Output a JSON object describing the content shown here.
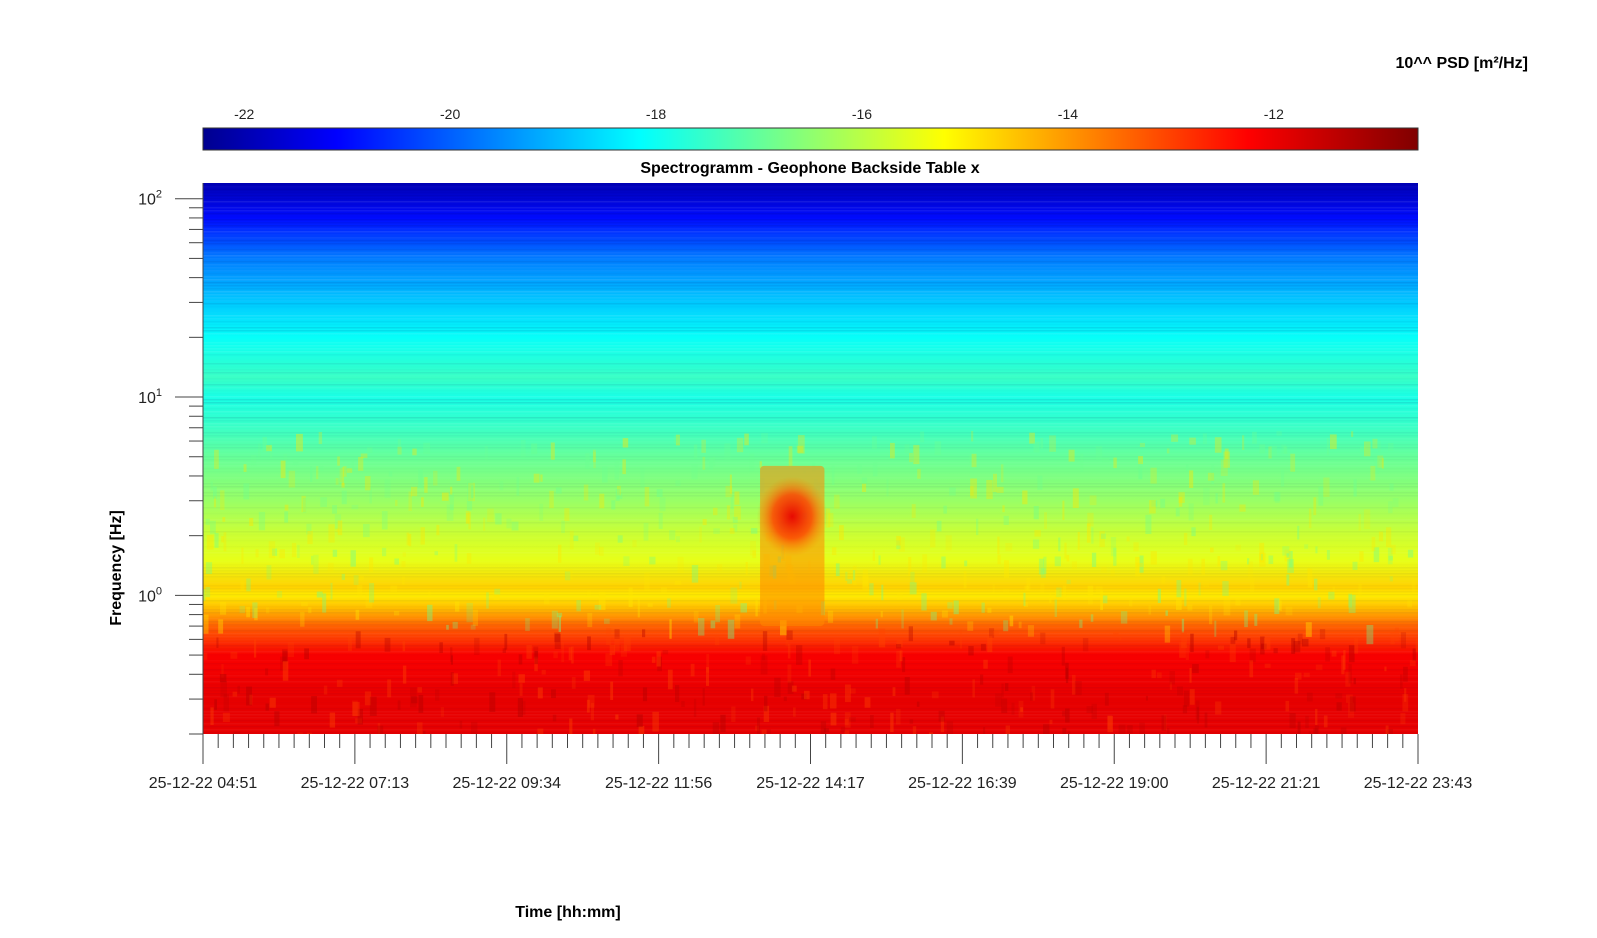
{
  "chart_data": {
    "type": "heatmap",
    "title": "Spectrogramm - Geophone Backside Table x",
    "xlabel": "Time [hh:mm]",
    "ylabel": "Frequency [Hz]",
    "y_scale": "log",
    "ylim": [
      0.2,
      120
    ],
    "y_ticks": [
      {
        "base": "10",
        "exp": "0",
        "value": 1
      },
      {
        "base": "10",
        "exp": "1",
        "value": 10
      },
      {
        "base": "10",
        "exp": "2",
        "value": 100
      }
    ],
    "x_ticks": [
      "25-12-22 04:51",
      "25-12-22 07:13",
      "25-12-22 09:34",
      "25-12-22 11:56",
      "25-12-22 14:17",
      "25-12-22 16:39",
      "25-12-22 19:00",
      "25-12-22 21:21",
      "25-12-22 23:43"
    ],
    "colorbar": {
      "label": "10^^ PSD [m²/Hz]",
      "range": [
        -22.4,
        -10.6
      ],
      "ticks": [
        "-22",
        "-20",
        "-18",
        "-16",
        "-14",
        "-12"
      ],
      "tick_values": [
        -22,
        -20,
        -18,
        -16,
        -14,
        -12
      ],
      "colormap": "jet"
    },
    "psd_profile": {
      "frequency_hz": [
        0.2,
        0.3,
        0.5,
        0.7,
        0.85,
        1.0,
        1.1,
        1.5,
        2.0,
        3.0,
        5.0,
        7.0,
        10,
        12.5,
        20,
        30,
        50,
        80,
        120
      ],
      "log10_psd": [
        -11.8,
        -11.8,
        -12.0,
        -13.2,
        -14.2,
        -14.8,
        -14.5,
        -15.3,
        -15.6,
        -16.2,
        -16.8,
        -17.3,
        -17.7,
        -17.3,
        -17.9,
        -18.6,
        -19.5,
        -20.8,
        -21.8
      ]
    },
    "events": [
      {
        "time_start": "25-12-22 13:30",
        "time_end": "25-12-22 14:30",
        "freq_range_hz": [
          0.7,
          4.5
        ],
        "peak_freq_hz": 2.5,
        "peak_log10_psd": -12.2
      }
    ]
  }
}
